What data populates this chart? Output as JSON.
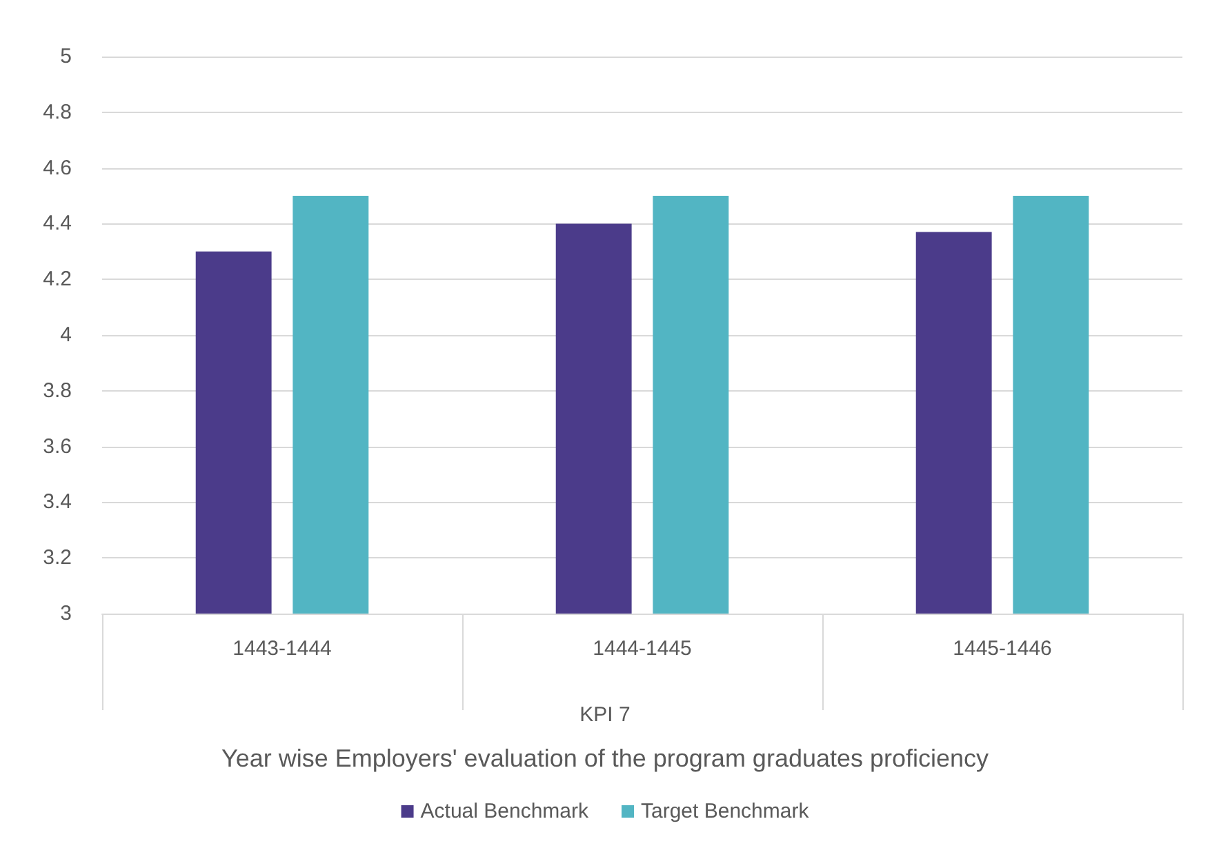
{
  "chart_data": {
    "type": "bar",
    "categories": [
      "1443-1444",
      "1444-1445",
      "1445-1446"
    ],
    "series": [
      {
        "name": "Actual Benchmark",
        "color": "#4b3b8a",
        "values": [
          4.3,
          4.4,
          4.37
        ]
      },
      {
        "name": "Target Benchmark",
        "color": "#52b5c3",
        "values": [
          4.5,
          4.5,
          4.5
        ]
      }
    ],
    "ylim": [
      3,
      5
    ],
    "yticks": [
      3,
      3.2,
      3.4,
      3.6,
      3.8,
      4,
      4.2,
      4.4,
      4.6,
      4.8,
      5
    ],
    "xlabel": "Year wise Employers' evaluation of the program graduates proficiency",
    "annotations": [
      "KPI 7"
    ],
    "grid": "y",
    "legend": "bottom"
  }
}
